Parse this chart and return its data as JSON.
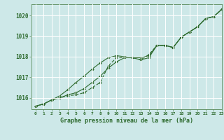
{
  "title": "Graphe pression niveau de la mer (hPa)",
  "background_color": "#cde8e8",
  "grid_color": "#b0d8d8",
  "line_color": "#2d6a2d",
  "marker_color": "#2d6a2d",
  "xlim": [
    -0.5,
    23
  ],
  "ylim": [
    1015.45,
    1020.55
  ],
  "xticks": [
    0,
    1,
    2,
    3,
    4,
    5,
    6,
    7,
    8,
    9,
    10,
    11,
    12,
    13,
    14,
    15,
    16,
    17,
    18,
    19,
    20,
    21,
    22,
    23
  ],
  "yticks": [
    1016,
    1017,
    1018,
    1019,
    1020
  ],
  "series1": [
    1015.6,
    1015.7,
    1015.9,
    1016.0,
    1016.1,
    1016.15,
    1016.25,
    1016.5,
    1016.75,
    1017.55,
    1017.95,
    1017.95,
    1017.95,
    1017.85,
    1018.1,
    1018.55,
    1018.55,
    1018.45,
    1018.95,
    1019.2,
    1019.45,
    1019.85,
    1019.95,
    1020.3
  ],
  "series2": [
    1015.6,
    1015.7,
    1015.9,
    1016.0,
    1016.15,
    1016.25,
    1016.45,
    1016.75,
    1017.05,
    1017.45,
    1017.75,
    1017.95,
    1017.95,
    1017.95,
    1018.05,
    1018.55,
    1018.55,
    1018.45,
    1018.95,
    1019.2,
    1019.45,
    1019.85,
    1019.95,
    1020.3
  ],
  "series3": [
    1015.6,
    1015.7,
    1015.9,
    1016.1,
    1016.4,
    1016.75,
    1017.05,
    1017.4,
    1017.7,
    1017.95,
    1018.05,
    1018.0,
    1017.95,
    1017.85,
    1017.95,
    1018.55,
    1018.55,
    1018.45,
    1018.95,
    1019.2,
    1019.45,
    1019.85,
    1019.95,
    1020.3
  ],
  "figsize": [
    3.2,
    2.0
  ],
  "dpi": 100
}
